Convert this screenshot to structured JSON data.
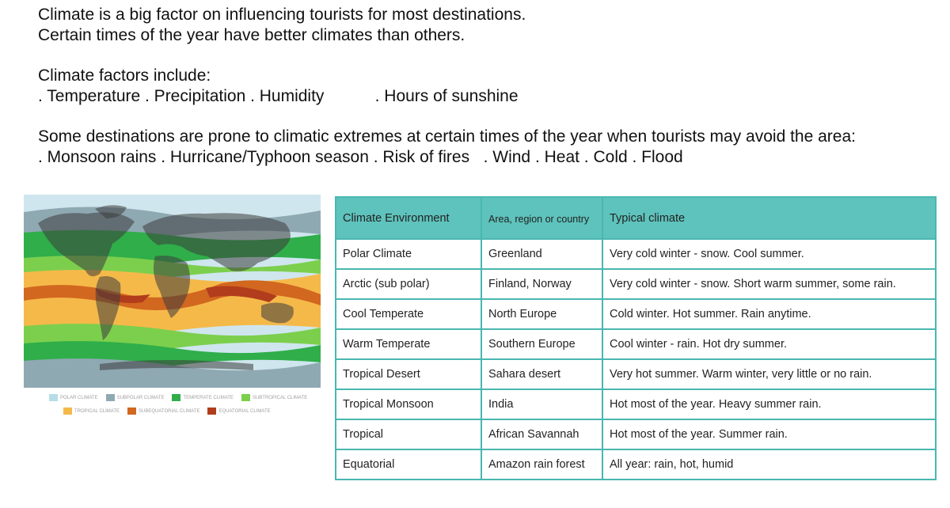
{
  "intro": {
    "line1": "Climate is a big factor on influencing tourists for most destinations.",
    "line2": "Certain times of the year have better climates than others.",
    "factors_heading": "Climate factors include:",
    "factors_list": ". Temperature . Precipitation . Humidity           . Hours of sunshine",
    "extremes_intro": "Some destinations are prone to climatic extremes at certain times of the year when tourists may avoid the area:",
    "extremes_list": ". Monsoon rains . Hurricane/Typhoon season . Risk of fires   . Wind . Heat . Cold . Flood"
  },
  "legend": [
    {
      "label": "Polar climate",
      "color": "#b6dde6"
    },
    {
      "label": "Subpolar climate",
      "color": "#8fa9b3"
    },
    {
      "label": "Temperate climate",
      "color": "#2fae4a"
    },
    {
      "label": "Subtropical climate",
      "color": "#7ccf4c"
    },
    {
      "label": "Tropical climate",
      "color": "#f5b94a"
    },
    {
      "label": "Subequatorial climate",
      "color": "#d2671f"
    },
    {
      "label": "Equatorial climate",
      "color": "#b13d1c"
    }
  ],
  "table": {
    "headers": [
      "Climate Environment",
      "Area, region or country",
      "Typical climate"
    ],
    "rows": [
      [
        "Polar Climate",
        "Greenland",
        "Very cold winter - snow. Cool summer."
      ],
      [
        "Arctic (sub polar)",
        "Finland, Norway",
        "Very cold winter - snow. Short warm summer, some rain."
      ],
      [
        "Cool Temperate",
        "North Europe",
        "Cold winter. Hot summer. Rain anytime."
      ],
      [
        "Warm Temperate",
        "Southern Europe",
        "Cool winter - rain. Hot dry summer."
      ],
      [
        "Tropical Desert",
        "Sahara desert",
        "Very hot summer. Warm winter, very little or no rain."
      ],
      [
        "Tropical Monsoon",
        "India",
        "Hot most of the year. Heavy summer rain."
      ],
      [
        "Tropical",
        "African Savannah",
        "Hot most of the year. Summer rain."
      ],
      [
        "Equatorial",
        "Amazon rain forest",
        "All year: rain, hot, humid"
      ]
    ]
  }
}
